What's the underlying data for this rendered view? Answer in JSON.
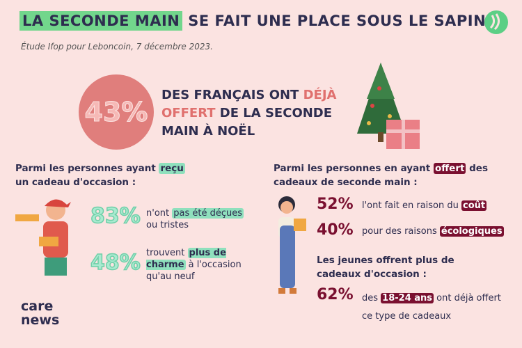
{
  "header": {
    "title": [
      "LA SECONDE MAIN",
      " SE FAIT UNE PLACE SOUS LE SAPIN"
    ],
    "source": "Étude Ifop pour Leboncoin, 7 décembre 2023."
  },
  "headline": {
    "stat": "43%",
    "text": [
      "DES FRANÇAIS ONT ",
      "DÉJÀ OFFERT",
      " DE LA SECONDE MAIN À NOËL"
    ]
  },
  "received": {
    "heading": [
      "Parmi les personnes ayant ",
      "reçu",
      " un cadeau d'occasion :"
    ],
    "stats": [
      {
        "stat": "83%",
        "text": [
          "n'ont ",
          "pas été déçues",
          " ou tristes"
        ]
      },
      {
        "stat": "48%",
        "text": [
          "trouvent ",
          "plus de charme",
          " à l'occasion qu'au neuf"
        ]
      }
    ]
  },
  "offered": {
    "heading": [
      "Parmi les personnes en ayant ",
      "offert",
      " des cadeaux de seconde main :"
    ],
    "stats": [
      {
        "stat": "52%",
        "text": [
          "l'ont fait en raison du ",
          "coût"
        ]
      },
      {
        "stat": "40%",
        "text": [
          "pour des raisons ",
          "écologiques"
        ]
      }
    ],
    "subheading": "Les jeunes offrent plus de cadeaux d'occasion :",
    "young": {
      "stat": "62%",
      "text": [
        "des ",
        "18-24 ans",
        " ont déjà offert ce type de cadeaux"
      ]
    }
  },
  "logo": [
    "care",
    "news"
  ]
}
